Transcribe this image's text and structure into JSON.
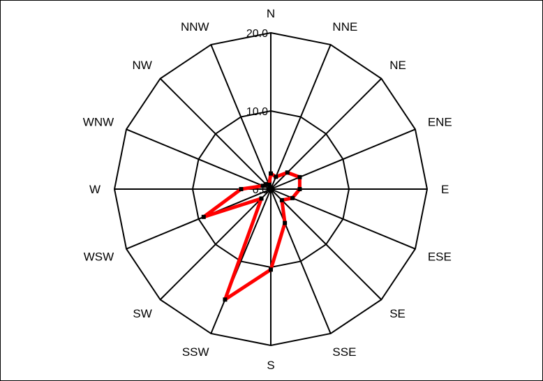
{
  "chart_data": {
    "type": "radar",
    "title": "",
    "directions": [
      "N",
      "NNE",
      "NE",
      "ENE",
      "E",
      "ESE",
      "SE",
      "SSE",
      "S",
      "SSW",
      "SW",
      "WSW",
      "W",
      "WNW",
      "NW",
      "NNW"
    ],
    "radial_ticks": [
      "0.0",
      "10.0",
      "20.0"
    ],
    "rlim": [
      0,
      20
    ],
    "grid": true,
    "legend": "none",
    "series": [
      {
        "values": [
          2.0,
          1.7,
          3.0,
          4.0,
          3.7,
          3.0,
          2.0,
          4.7,
          10.3,
          15.3,
          1.7,
          9.3,
          3.8,
          1.1,
          0.9,
          0.6
        ]
      }
    ],
    "colors": {
      "series": "#ff0000",
      "marker": "#000000",
      "grid": "#000000"
    }
  }
}
